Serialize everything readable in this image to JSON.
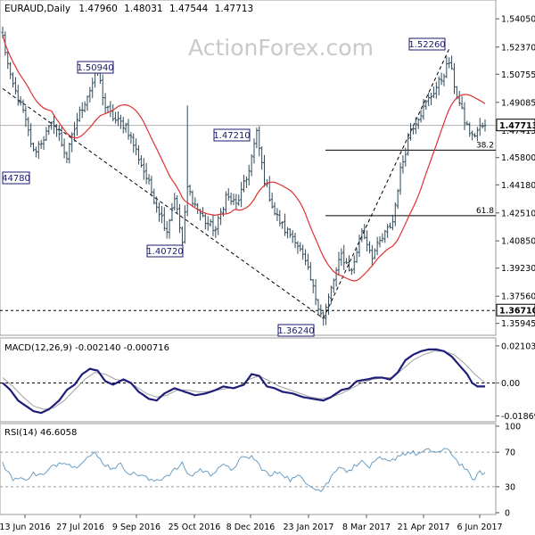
{
  "chart_data": [
    {
      "type": "candlestick",
      "header": {
        "symbol": "EURAUD,Daily",
        "open": "1.47960",
        "high": "1.48031",
        "low": "1.47544",
        "close": "1.47713"
      },
      "watermark": "ActionForex.com",
      "ylim": [
        1.3545,
        1.5485
      ],
      "y_ticks": [
        "1.54050",
        "1.52370",
        "1.50755",
        "1.49085",
        "1.47415",
        "1.45800",
        "1.44180",
        "1.42510",
        "1.40850",
        "1.39230",
        "1.37560",
        "1.35945"
      ],
      "x_ticks": [
        "13 Jun 2016",
        "27 Jul 2016",
        "9 Sep 2016",
        "25 Oct 2016",
        "8 Dec 2016",
        "23 Jan 2017",
        "8 Mar 2017",
        "21 Apr 2017",
        "6 Jun 2017"
      ],
      "current_price_label": "1.47713",
      "current_price": 1.47713,
      "support_label": "1.36710",
      "support_level": 1.3671,
      "fib_levels": [
        {
          "label": "38.2",
          "value": 1.4624
        },
        {
          "label": "61.8",
          "value": 1.4235
        }
      ],
      "annotations": [
        {
          "label": "1.52260",
          "value": 1.5226
        },
        {
          "label": "1.50940",
          "value": 1.5094
        },
        {
          "label": "1.47210",
          "value": 1.4721
        },
        {
          "label": "1.40720",
          "value": 1.4072
        },
        {
          "label": "1.36240",
          "value": 1.3624
        },
        {
          "label": "44780",
          "value": 1.4478
        }
      ],
      "trendlines": [
        {
          "from": [
            0,
            1.499
          ],
          "to": [
            125,
            1.3624
          ]
        },
        {
          "from": [
            125,
            1.3624
          ],
          "to": [
            174,
            1.5226
          ]
        }
      ],
      "anchors": [
        [
          0,
          1.5296
        ],
        [
          3,
          1.505
        ],
        [
          8,
          1.485
        ],
        [
          12,
          1.461
        ],
        [
          16,
          1.47
        ],
        [
          20,
          1.479
        ],
        [
          25,
          1.458
        ],
        [
          29,
          1.481
        ],
        [
          33,
          1.495
        ],
        [
          37,
          1.5094
        ],
        [
          40,
          1.488
        ],
        [
          44,
          1.48
        ],
        [
          48,
          1.477
        ],
        [
          52,
          1.462
        ],
        [
          56,
          1.446
        ],
        [
          60,
          1.43
        ],
        [
          64,
          1.415
        ],
        [
          67,
          1.435
        ],
        [
          70,
          1.4072
        ],
        [
          72,
          1.44
        ],
        [
          75,
          1.43
        ],
        [
          79,
          1.42
        ],
        [
          83,
          1.415
        ],
        [
          87,
          1.435
        ],
        [
          91,
          1.43
        ],
        [
          95,
          1.445
        ],
        [
          99,
          1.4721
        ],
        [
          102,
          1.445
        ],
        [
          106,
          1.425
        ],
        [
          110,
          1.415
        ],
        [
          114,
          1.41
        ],
        [
          118,
          1.395
        ],
        [
          122,
          1.375
        ],
        [
          125,
          1.3624
        ],
        [
          128,
          1.38
        ],
        [
          132,
          1.4
        ],
        [
          136,
          1.39
        ],
        [
          140,
          1.415
        ],
        [
          144,
          1.4
        ],
        [
          148,
          1.41
        ],
        [
          152,
          1.42
        ],
        [
          155,
          1.45
        ],
        [
          159,
          1.475
        ],
        [
          163,
          1.485
        ],
        [
          167,
          1.495
        ],
        [
          171,
          1.505
        ],
        [
          174,
          1.515
        ],
        [
          177,
          1.495
        ],
        [
          180,
          1.48
        ],
        [
          183,
          1.47
        ],
        [
          186,
          1.476
        ],
        [
          188,
          1.4771
        ]
      ],
      "spikes": [
        [
          72,
          1.489
        ]
      ]
    },
    {
      "type": "line",
      "title": "MACD(12,26,9) -0.002140 -0.000716",
      "ylim": [
        -0.0205,
        0.0235
      ],
      "y_ticks": [
        "0.021032",
        "0.00",
        "-0.018699"
      ],
      "x_ticks": [
        "13 Jun 2016",
        "27 Jul 2016",
        "9 Sep 2016",
        "25 Oct 2016",
        "8 Dec 2016",
        "23 Jan 2017",
        "8 Mar 2017",
        "21 Apr 2017",
        "6 Jun 2017"
      ],
      "series": [
        {
          "name": "MACD",
          "anchors": [
            [
              0,
              0.0
            ],
            [
              3,
              -0.004
            ],
            [
              6,
              -0.01
            ],
            [
              9,
              -0.013
            ],
            [
              12,
              -0.016
            ],
            [
              15,
              -0.017
            ],
            [
              18,
              -0.015
            ],
            [
              22,
              -0.01
            ],
            [
              25,
              -0.004
            ],
            [
              28,
              -0.001
            ],
            [
              31,
              0.005
            ],
            [
              34,
              0.008
            ],
            [
              37,
              0.007
            ],
            [
              40,
              0.001
            ],
            [
              43,
              -0.001
            ],
            [
              47,
              0.002
            ],
            [
              50,
              0.0
            ],
            [
              53,
              -0.005
            ],
            [
              57,
              -0.009
            ],
            [
              60,
              -0.01
            ],
            [
              63,
              -0.006
            ],
            [
              67,
              -0.003
            ],
            [
              71,
              -0.005
            ],
            [
              75,
              -0.007
            ],
            [
              79,
              -0.006
            ],
            [
              83,
              -0.004
            ],
            [
              86,
              -0.002
            ],
            [
              90,
              -0.003
            ],
            [
              94,
              -0.001
            ],
            [
              97,
              0.005
            ],
            [
              100,
              0.004
            ],
            [
              103,
              -0.002
            ],
            [
              106,
              -0.003
            ],
            [
              109,
              -0.005
            ],
            [
              113,
              -0.006
            ],
            [
              117,
              -0.008
            ],
            [
              121,
              -0.009
            ],
            [
              125,
              -0.01
            ],
            [
              128,
              -0.008
            ],
            [
              132,
              -0.004
            ],
            [
              135,
              -0.003
            ],
            [
              138,
              0.001
            ],
            [
              142,
              0.002
            ],
            [
              145,
              0.003
            ],
            [
              148,
              0.003
            ],
            [
              151,
              0.002
            ],
            [
              154,
              0.006
            ],
            [
              157,
              0.013
            ],
            [
              160,
              0.016
            ],
            [
              163,
              0.018
            ],
            [
              166,
              0.019
            ],
            [
              169,
              0.019
            ],
            [
              172,
              0.018
            ],
            [
              175,
              0.015
            ],
            [
              178,
              0.01
            ],
            [
              181,
              0.005
            ],
            [
              183,
              0.0
            ],
            [
              185,
              -0.002
            ],
            [
              188,
              -0.002
            ]
          ]
        },
        {
          "name": "Signal",
          "anchors": [
            [
              0,
              0.003
            ],
            [
              4,
              -0.002
            ],
            [
              8,
              -0.008
            ],
            [
              12,
              -0.013
            ],
            [
              16,
              -0.015
            ],
            [
              20,
              -0.014
            ],
            [
              24,
              -0.01
            ],
            [
              28,
              -0.004
            ],
            [
              32,
              0.002
            ],
            [
              36,
              0.006
            ],
            [
              40,
              0.005
            ],
            [
              44,
              0.002
            ],
            [
              48,
              0.001
            ],
            [
              52,
              -0.002
            ],
            [
              56,
              -0.006
            ],
            [
              60,
              -0.008
            ],
            [
              64,
              -0.007
            ],
            [
              68,
              -0.004
            ],
            [
              72,
              -0.004
            ],
            [
              76,
              -0.005
            ],
            [
              80,
              -0.005
            ],
            [
              84,
              -0.004
            ],
            [
              88,
              -0.003
            ],
            [
              92,
              -0.002
            ],
            [
              96,
              0.002
            ],
            [
              100,
              0.004
            ],
            [
              104,
              0.001
            ],
            [
              108,
              -0.002
            ],
            [
              112,
              -0.004
            ],
            [
              116,
              -0.006
            ],
            [
              120,
              -0.008
            ],
            [
              124,
              -0.009
            ],
            [
              128,
              -0.008
            ],
            [
              132,
              -0.006
            ],
            [
              136,
              -0.003
            ],
            [
              140,
              0.0
            ],
            [
              144,
              0.002
            ],
            [
              148,
              0.003
            ],
            [
              152,
              0.003
            ],
            [
              156,
              0.008
            ],
            [
              160,
              0.013
            ],
            [
              164,
              0.016
            ],
            [
              168,
              0.018
            ],
            [
              172,
              0.018
            ],
            [
              176,
              0.016
            ],
            [
              180,
              0.011
            ],
            [
              184,
              0.005
            ],
            [
              188,
              0.0
            ]
          ]
        }
      ]
    },
    {
      "type": "line",
      "title": "RSI(14) 46.6058",
      "ylim": [
        0,
        100
      ],
      "y_ticks": [
        "100",
        "70",
        "30",
        "0"
      ],
      "x_ticks": [
        "13 Jun 2016",
        "27 Jul 2016",
        "9 Sep 2016",
        "25 Oct 2016",
        "8 Dec 2016",
        "23 Jan 2017",
        "8 Mar 2017",
        "21 Apr 2017",
        "6 Jun 2017"
      ],
      "levels": [
        70,
        30
      ],
      "series": [
        {
          "name": "RSI",
          "anchors": [
            [
              0,
              56
            ],
            [
              4,
              40
            ],
            [
              8,
              38
            ],
            [
              12,
              45
            ],
            [
              16,
              43
            ],
            [
              20,
              55
            ],
            [
              24,
              60
            ],
            [
              28,
              52
            ],
            [
              32,
              63
            ],
            [
              36,
              68
            ],
            [
              39,
              58
            ],
            [
              42,
              52
            ],
            [
              46,
              55
            ],
            [
              50,
              45
            ],
            [
              54,
              44
            ],
            [
              58,
              36
            ],
            [
              62,
              40
            ],
            [
              66,
              47
            ],
            [
              70,
              56
            ],
            [
              73,
              42
            ],
            [
              77,
              50
            ],
            [
              81,
              44
            ],
            [
              85,
              55
            ],
            [
              89,
              50
            ],
            [
              93,
              62
            ],
            [
              97,
              65
            ],
            [
              100,
              55
            ],
            [
              104,
              42
            ],
            [
              108,
              48
            ],
            [
              112,
              38
            ],
            [
              116,
              42
            ],
            [
              120,
              32
            ],
            [
              124,
              25
            ],
            [
              127,
              36
            ],
            [
              131,
              55
            ],
            [
              135,
              47
            ],
            [
              139,
              60
            ],
            [
              143,
              53
            ],
            [
              147,
              62
            ],
            [
              151,
              58
            ],
            [
              154,
              66
            ],
            [
              158,
              70
            ],
            [
              162,
              68
            ],
            [
              166,
              72
            ],
            [
              170,
              70
            ],
            [
              174,
              73
            ],
            [
              177,
              60
            ],
            [
              180,
              52
            ],
            [
              183,
              38
            ],
            [
              186,
              46
            ],
            [
              188,
              46.6
            ]
          ]
        }
      ]
    }
  ]
}
